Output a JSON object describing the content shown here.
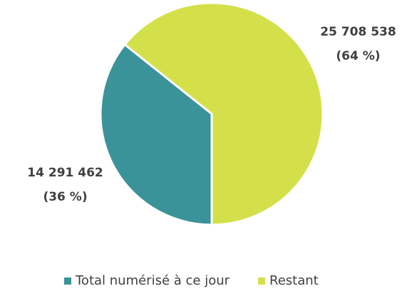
{
  "chart_data": {
    "type": "pie",
    "categories": [
      "Total numérisé à ce jour",
      "Restant"
    ],
    "values": [
      14291462,
      25708538
    ],
    "value_labels": [
      "14 291 462",
      "25 708 538"
    ],
    "percent_labels": [
      "(36 %)",
      "(64 %)"
    ],
    "colors": [
      "#3a9399",
      "#d4e04a"
    ],
    "legend": "bottom"
  }
}
